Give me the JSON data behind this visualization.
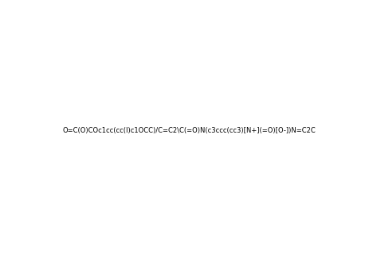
{
  "smiles": "O=C(O)COc1cc(cc(I)c1OCC)/C=C2\\C(=O)N(c3ccc(cc3)[N+](=O)[O-])N=C2C",
  "title": "",
  "bg_color": "#ffffff",
  "line_color": "#000000",
  "figsize": [
    4.63,
    3.23
  ],
  "dpi": 100
}
